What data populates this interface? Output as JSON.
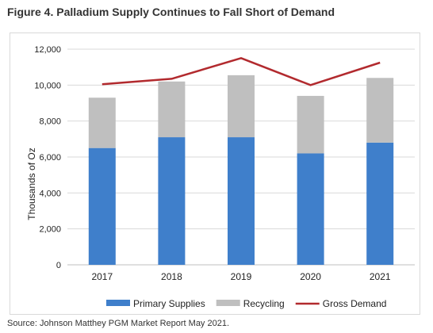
{
  "figure": {
    "title": "Figure 4. Palladium Supply Continues to Fall Short of Demand",
    "source": "Source: Johnson Matthey PGM Market Report May 2021."
  },
  "chart_data": {
    "type": "bar",
    "stacked": true,
    "title": "",
    "xlabel": "",
    "ylabel": "Thousands of Oz",
    "categories": [
      "2017",
      "2018",
      "2019",
      "2020",
      "2021"
    ],
    "ylim": [
      0,
      12000
    ],
    "yticks": [
      0,
      2000,
      4000,
      6000,
      8000,
      10000,
      12000
    ],
    "ytick_labels": [
      "0",
      "2,000",
      "4,000",
      "6,000",
      "8,000",
      "10,000",
      "12,000"
    ],
    "grid": true,
    "legend_position": "bottom",
    "series": [
      {
        "name": "Primary Supplies",
        "kind": "bar",
        "color": "#3f7fcb",
        "values": [
          6500,
          7100,
          7100,
          6200,
          6800
        ]
      },
      {
        "name": "Recycling",
        "kind": "bar",
        "color": "#bfbfbf",
        "values": [
          2800,
          3100,
          3450,
          3200,
          3600
        ]
      },
      {
        "name": "Gross Demand",
        "kind": "line",
        "color": "#b22a2e",
        "values": [
          10050,
          10350,
          11500,
          10000,
          11250
        ]
      }
    ]
  }
}
